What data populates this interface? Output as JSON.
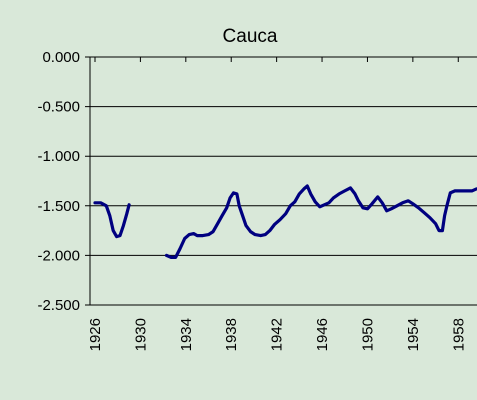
{
  "chart_data": {
    "type": "line",
    "title": "Cauca",
    "x": [
      1926.0,
      1926.5,
      1927.0,
      1927.3,
      1927.6,
      1927.9,
      1928.2,
      1928.5,
      1928.8,
      1929.0,
      null,
      1932.3,
      1932.7,
      1933.1,
      1933.5,
      1933.9,
      1934.3,
      1934.7,
      1935.0,
      1935.5,
      1936.0,
      1936.4,
      1936.8,
      1937.2,
      1937.6,
      1937.9,
      1938.2,
      1938.5,
      1938.7,
      1939.0,
      1939.3,
      1939.7,
      1940.1,
      1940.6,
      1941.0,
      1941.4,
      1941.8,
      1942.3,
      1942.8,
      1943.2,
      1943.6,
      1944.0,
      1944.4,
      1944.7,
      1945.0,
      1945.4,
      1945.8,
      1946.2,
      1946.6,
      1947.0,
      1947.5,
      1948.0,
      1948.5,
      1948.9,
      1949.2,
      1949.6,
      1950.0,
      1950.4,
      1950.9,
      1951.3,
      1951.7,
      1952.1,
      1952.6,
      1953.1,
      1953.6,
      1954.0,
      1954.5,
      1955.0,
      1955.5,
      1956.0,
      1956.3,
      1956.6,
      1956.8,
      1957.0,
      1957.3,
      1957.7,
      1958.2,
      1958.7,
      1959.2,
      1959.6
    ],
    "series": [
      {
        "color": "#000080",
        "values": [
          -1.47,
          -1.47,
          -1.5,
          -1.6,
          -1.75,
          -1.81,
          -1.8,
          -1.7,
          -1.58,
          -1.49,
          null,
          -2.0,
          -2.02,
          -2.02,
          -1.93,
          -1.83,
          -1.79,
          -1.78,
          -1.8,
          -1.8,
          -1.79,
          -1.76,
          -1.68,
          -1.6,
          -1.52,
          -1.42,
          -1.37,
          -1.38,
          -1.5,
          -1.6,
          -1.7,
          -1.76,
          -1.79,
          -1.8,
          -1.79,
          -1.75,
          -1.69,
          -1.64,
          -1.58,
          -1.5,
          -1.46,
          -1.38,
          -1.33,
          -1.3,
          -1.38,
          -1.46,
          -1.51,
          -1.49,
          -1.47,
          -1.42,
          -1.38,
          -1.35,
          -1.32,
          -1.38,
          -1.45,
          -1.52,
          -1.53,
          -1.48,
          -1.41,
          -1.47,
          -1.55,
          -1.53,
          -1.5,
          -1.47,
          -1.45,
          -1.48,
          -1.52,
          -1.57,
          -1.62,
          -1.68,
          -1.75,
          -1.75,
          -1.6,
          -1.5,
          -1.37,
          -1.35,
          -1.35,
          -1.35,
          -1.35,
          -1.33
        ]
      }
    ],
    "xlim": [
      1925.56,
      1959.65
    ],
    "xticks": [
      1926,
      1930,
      1934,
      1938,
      1942,
      1946,
      1950,
      1954,
      1958
    ],
    "ylim": [
      -2.5,
      0
    ],
    "yticks": [
      {
        "value": 0,
        "label": "0.000"
      },
      {
        "value": -0.5,
        "label": "-0.500"
      },
      {
        "value": -1,
        "label": "-1.000"
      },
      {
        "value": -1.5,
        "label": "-1.500"
      },
      {
        "value": -2,
        "label": "-2.000"
      },
      {
        "value": -2.5,
        "label": "-2.500"
      }
    ],
    "grid": true
  }
}
